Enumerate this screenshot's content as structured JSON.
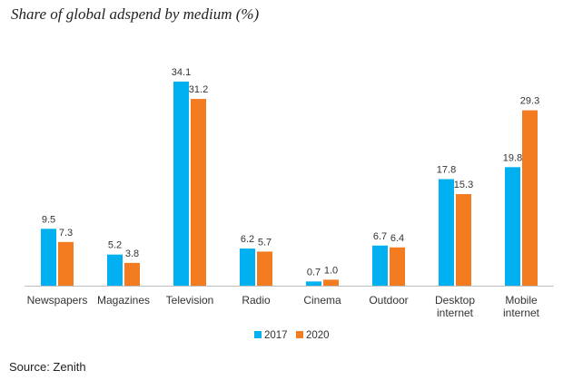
{
  "chart_data": {
    "type": "bar",
    "title": "Share of global adspend by medium (%)",
    "categories": [
      [
        "Newspapers"
      ],
      [
        "Magazines"
      ],
      [
        "Television"
      ],
      [
        "Radio"
      ],
      [
        "Cinema"
      ],
      [
        "Outdoor"
      ],
      [
        "Desktop",
        "internet"
      ],
      [
        "Mobile",
        "internet"
      ]
    ],
    "series": [
      {
        "name": "2017",
        "color": "#00B0F0",
        "values": [
          9.5,
          5.2,
          34.1,
          6.2,
          0.7,
          6.7,
          17.8,
          19.8
        ],
        "labels": [
          "9.5",
          "5.2",
          "34.1",
          "6.2",
          "0.7",
          "6.7",
          "17.8",
          "19.8"
        ]
      },
      {
        "name": "2020",
        "color": "#F47C20",
        "values": [
          7.3,
          3.8,
          31.2,
          5.7,
          1.0,
          6.4,
          15.3,
          29.3
        ],
        "labels": [
          "7.3",
          "3.8",
          "31.2",
          "5.7",
          "1.0",
          "6.4",
          "15.3",
          "29.3"
        ]
      }
    ],
    "ylim": [
      0,
      35
    ],
    "grid": false,
    "legend_position": "bottom"
  },
  "source": "Source: Zenith"
}
